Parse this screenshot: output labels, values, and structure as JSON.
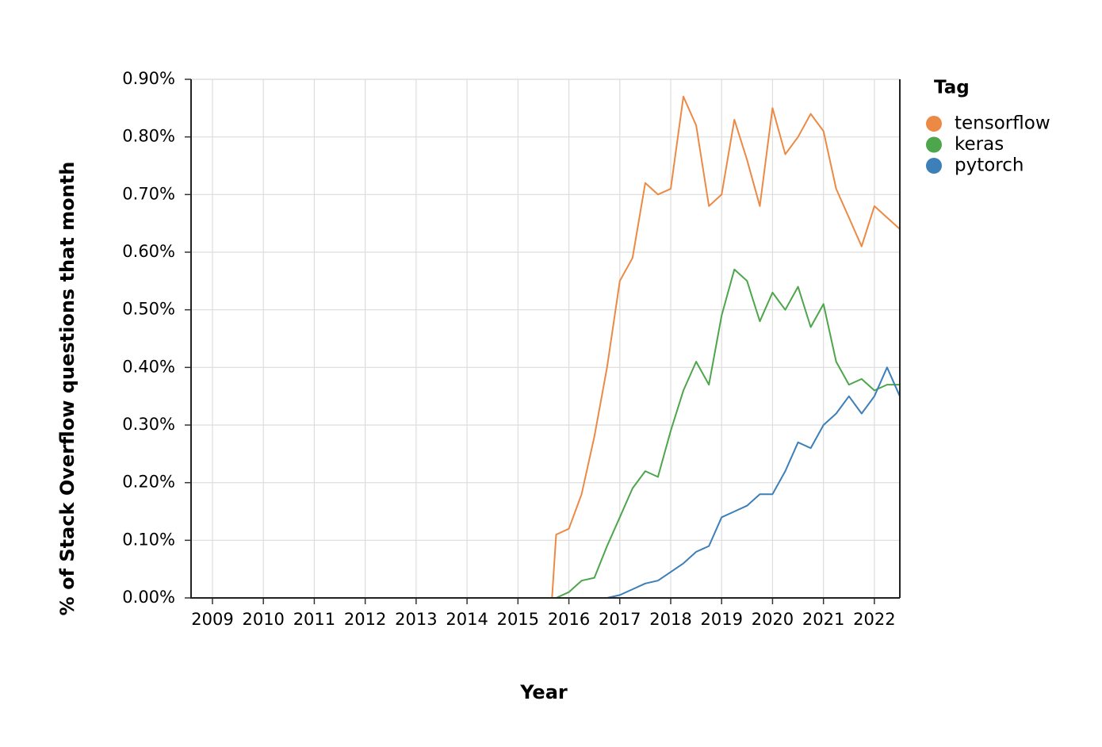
{
  "chart_data": {
    "type": "line",
    "x_label": "Year",
    "y_label": "% of Stack Overflow questions that month",
    "legend_title": "Tag",
    "legend_position": "right",
    "grid": true,
    "x": [
      2008.58,
      2015.5,
      2015.67,
      2015.75,
      2016,
      2016.25,
      2016.5,
      2016.75,
      2017,
      2017.25,
      2017.5,
      2017.75,
      2018,
      2018.25,
      2018.5,
      2018.75,
      2019,
      2019.25,
      2019.5,
      2019.75,
      2020,
      2020.25,
      2020.5,
      2020.75,
      2021,
      2021.25,
      2021.5,
      2021.75,
      2022,
      2022.25,
      2022.5
    ],
    "series": [
      {
        "name": "tensorflow",
        "color": "#ec8a45",
        "values": [
          0,
          0,
          0,
          0.11,
          0.12,
          0.18,
          0.28,
          0.4,
          0.55,
          0.59,
          0.72,
          0.7,
          0.71,
          0.87,
          0.82,
          0.68,
          0.7,
          0.83,
          0.76,
          0.68,
          0.85,
          0.77,
          0.8,
          0.84,
          0.81,
          0.71,
          0.66,
          0.61,
          0.68,
          0.66,
          0.64
        ]
      },
      {
        "name": "keras",
        "color": "#4da64b",
        "values": [
          0,
          0,
          0,
          0,
          0.01,
          0.03,
          0.035,
          0.09,
          0.14,
          0.19,
          0.22,
          0.21,
          0.29,
          0.36,
          0.41,
          0.37,
          0.49,
          0.57,
          0.55,
          0.48,
          0.53,
          0.5,
          0.54,
          0.47,
          0.51,
          0.41,
          0.37,
          0.38,
          0.36,
          0.37,
          0.37
        ]
      },
      {
        "name": "pytorch",
        "color": "#3c7fb9",
        "values": [
          0,
          0,
          0,
          0,
          0,
          0,
          0,
          0,
          0.005,
          0.015,
          0.025,
          0.03,
          0.045,
          0.06,
          0.08,
          0.09,
          0.14,
          0.15,
          0.16,
          0.18,
          0.18,
          0.22,
          0.27,
          0.26,
          0.3,
          0.32,
          0.35,
          0.32,
          0.35,
          0.4,
          0.35
        ]
      }
    ],
    "xlim": [
      2008.58,
      2022.5
    ],
    "xticks": [
      2009,
      2010,
      2011,
      2012,
      2013,
      2014,
      2015,
      2016,
      2017,
      2018,
      2019,
      2020,
      2021,
      2022
    ],
    "ylim": [
      0,
      0.9
    ],
    "yticks": [
      {
        "value": 0,
        "label": "0.00%"
      },
      {
        "value": 0.1,
        "label": "0.10%"
      },
      {
        "value": 0.2,
        "label": "0.20%"
      },
      {
        "value": 0.3,
        "label": "0.30%"
      },
      {
        "value": 0.4,
        "label": "0.40%"
      },
      {
        "value": 0.5,
        "label": "0.50%"
      },
      {
        "value": 0.6,
        "label": "0.60%"
      },
      {
        "value": 0.7,
        "label": "0.70%"
      },
      {
        "value": 0.8,
        "label": "0.80%"
      },
      {
        "value": 0.9,
        "label": "0.90%"
      }
    ]
  }
}
